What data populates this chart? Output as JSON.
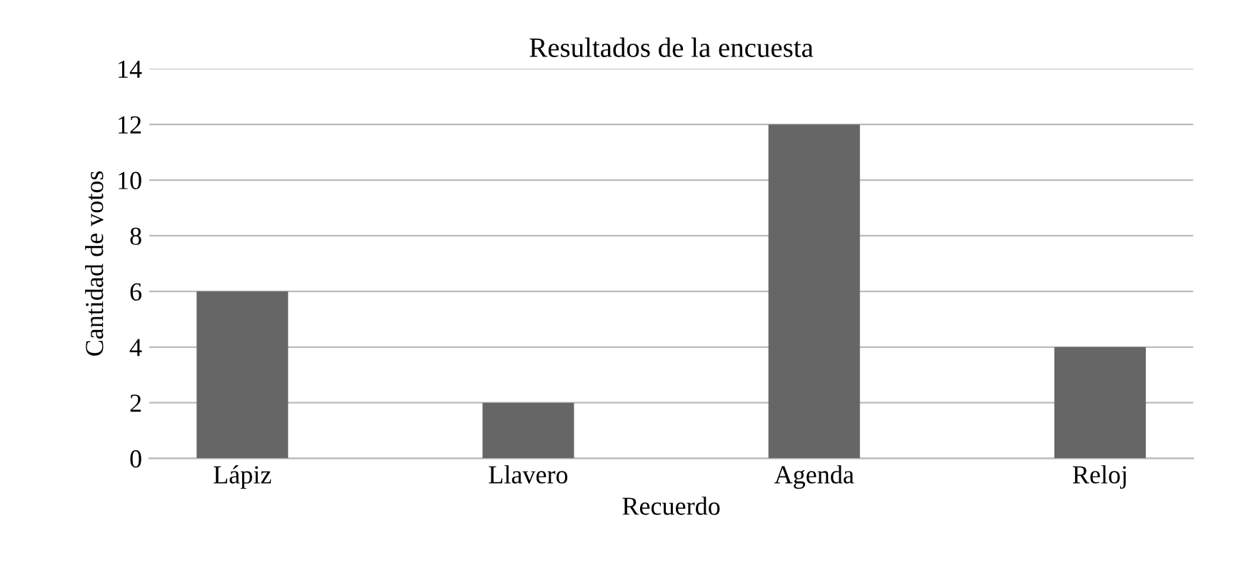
{
  "chart_data": {
    "type": "bar",
    "title": "Resultados de la encuesta",
    "xlabel": "Recuerdo",
    "ylabel": "Cantidad de votos",
    "categories": [
      "Lápiz",
      "Llavero",
      "Agenda",
      "Reloj"
    ],
    "values": [
      6,
      2,
      12,
      4
    ],
    "color": "#666666",
    "ylim": [
      0,
      14
    ],
    "yticks": [
      0,
      2,
      4,
      6,
      8,
      10,
      12,
      14
    ],
    "grid": "y",
    "legend": false
  }
}
